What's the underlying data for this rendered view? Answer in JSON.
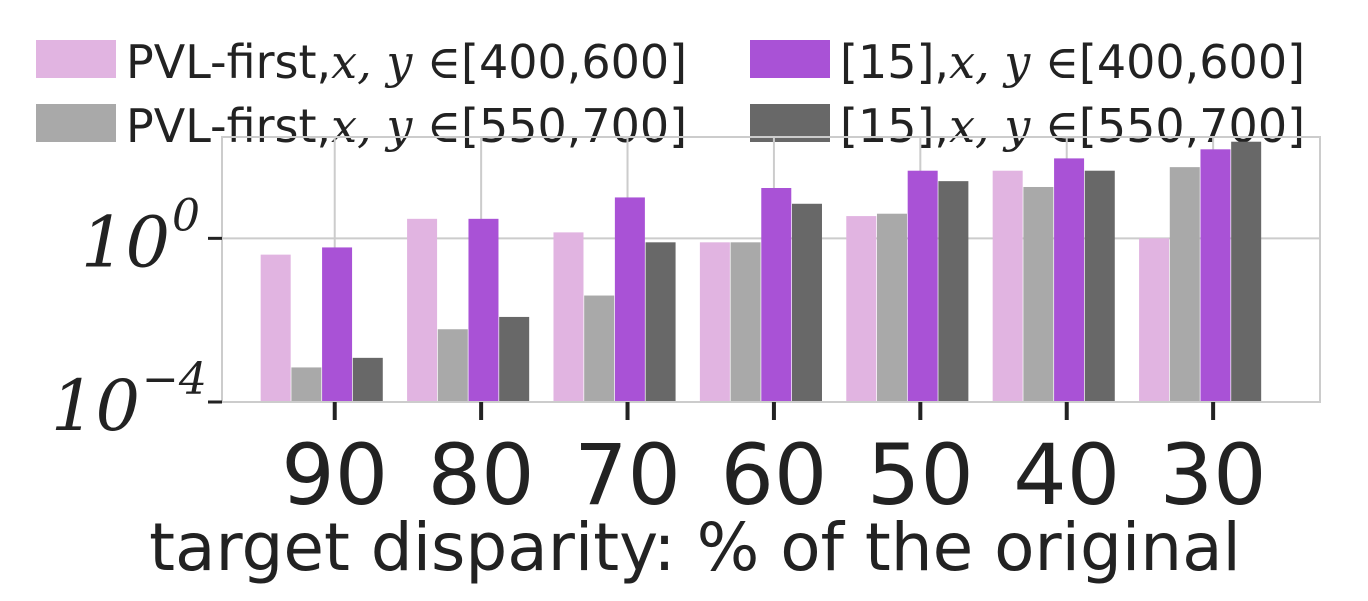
{
  "chart_data": {
    "type": "bar",
    "categories": [
      "90",
      "80",
      "70",
      "60",
      "50",
      "40",
      "30"
    ],
    "xlabel": "target disparity: % of the original",
    "ylabel": "",
    "yscale": "log",
    "ylim": [
      0.0001,
      300
    ],
    "yticks": [
      {
        "base": "10",
        "exp": "0"
      },
      {
        "base": "10",
        "exp": "−4"
      }
    ],
    "grid": true,
    "legend": {
      "placement": "top",
      "columns": 2,
      "entries": [
        {
          "series": 0,
          "prefix": "PVL-first,",
          "math": "x, y ∈",
          "range": "[400,600]"
        },
        {
          "series": 2,
          "prefix": "[15],",
          "math": "x, y ∈",
          "range": "[400,600]"
        },
        {
          "series": 1,
          "prefix": "PVL-first,",
          "math": "x, y ∈",
          "range": "[550,700]"
        },
        {
          "series": 3,
          "prefix": "[15],",
          "math": "x, y ∈",
          "range": "[550,700]"
        }
      ]
    },
    "series": [
      {
        "name": "PVL-first, x, y ∈[400,600]",
        "color": "#e1b4e1",
        "values": [
          0.4,
          3.0,
          1.4,
          0.8,
          3.5,
          45,
          1.0
        ]
      },
      {
        "name": "[15], x, y ∈[400,600]",
        "color": "#a9a9a9",
        "values": [
          0.0007,
          0.006,
          0.04,
          0.8,
          4.0,
          18,
          55
        ]
      },
      {
        "name": "PVL-first, x, y ∈[550,700]",
        "color": "#a952d6",
        "values": [
          0.6,
          3.0,
          10,
          17,
          45,
          90,
          150
        ]
      },
      {
        "name": "[15], x, y ∈[550,700]",
        "color": "#686868",
        "values": [
          0.0012,
          0.012,
          0.8,
          7,
          25,
          45,
          230
        ]
      }
    ],
    "colors": {
      "grid": "#cccccc",
      "axis": "#cccccc",
      "text": "#222222"
    }
  }
}
